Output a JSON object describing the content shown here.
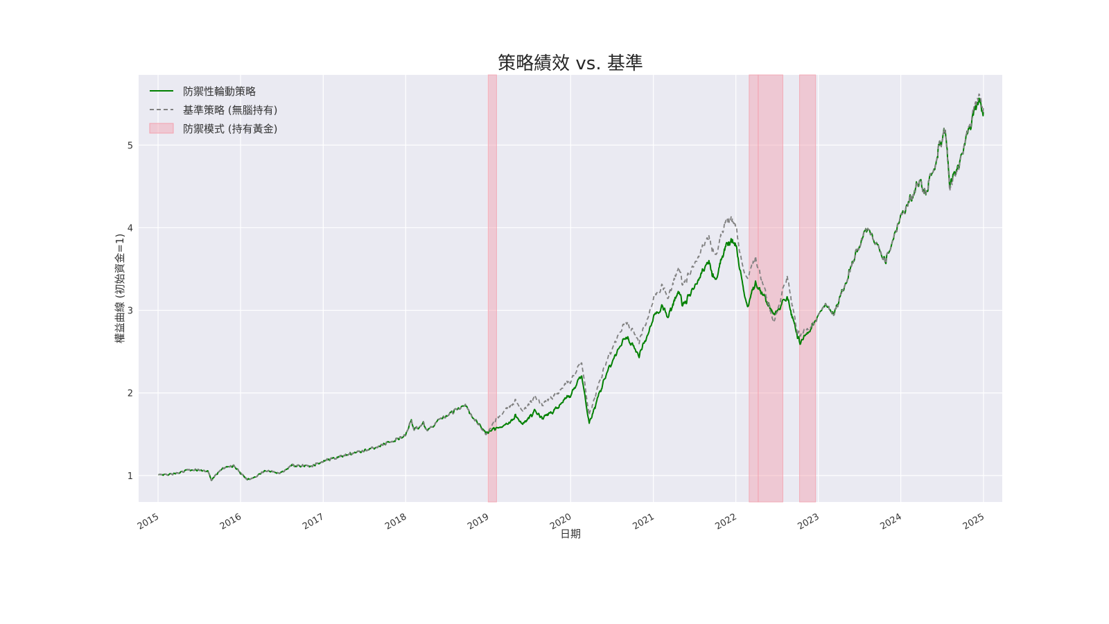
{
  "chart_data": {
    "type": "line",
    "title": "策略績效 vs. 基準",
    "xlabel": "日期",
    "ylabel": "權益曲線 (初始資金=1)",
    "xlim": [
      "2014-10-07",
      "2025-03-25"
    ],
    "ylim": [
      0.68,
      5.85
    ],
    "x_ticks": [
      "2015",
      "2016",
      "2017",
      "2018",
      "2019",
      "2020",
      "2021",
      "2022",
      "2023",
      "2024",
      "2025"
    ],
    "y_ticks": [
      1,
      2,
      3,
      4,
      5
    ],
    "grid": true,
    "legend_position": "top-left",
    "legend": [
      {
        "label": "防禦性輪動策略",
        "kind": "solid-line",
        "color": "#008000"
      },
      {
        "label": "基準策略 (無腦持有)",
        "kind": "dashed-line",
        "color": "#808080"
      },
      {
        "label": "防禦模式 (持有黃金)",
        "kind": "shaded-area",
        "color": "#f4a0ad"
      }
    ],
    "defensive_periods": [
      {
        "start": "2019-01-01",
        "end": "2019-02-07"
      },
      {
        "start": "2022-03-01",
        "end": "2022-04-10"
      },
      {
        "start": "2022-04-10",
        "end": "2022-07-28"
      },
      {
        "start": "2022-10-10",
        "end": "2022-12-20"
      }
    ],
    "series": [
      {
        "name": "防禦性輪動策略",
        "color": "#008000",
        "style": "solid",
        "points": [
          [
            "2015-01-02",
            1.0
          ],
          [
            "2015-02-15",
            1.01
          ],
          [
            "2015-05-20",
            1.07
          ],
          [
            "2015-07-15",
            1.06
          ],
          [
            "2015-08-10",
            1.06
          ],
          [
            "2015-08-25",
            0.95
          ],
          [
            "2015-10-15",
            1.09
          ],
          [
            "2015-12-01",
            1.12
          ],
          [
            "2016-01-20",
            0.97
          ],
          [
            "2016-02-12",
            0.95
          ],
          [
            "2016-04-20",
            1.06
          ],
          [
            "2016-06-27",
            1.03
          ],
          [
            "2016-08-15",
            1.12
          ],
          [
            "2016-11-04",
            1.11
          ],
          [
            "2016-12-31",
            1.17
          ],
          [
            "2017-03-01",
            1.22
          ],
          [
            "2017-06-30",
            1.3
          ],
          [
            "2017-09-30",
            1.38
          ],
          [
            "2017-12-31",
            1.48
          ],
          [
            "2018-01-26",
            1.68
          ],
          [
            "2018-02-08",
            1.55
          ],
          [
            "2018-03-20",
            1.64
          ],
          [
            "2018-04-06",
            1.55
          ],
          [
            "2018-06-15",
            1.7
          ],
          [
            "2018-09-20",
            1.86
          ],
          [
            "2018-10-25",
            1.7
          ],
          [
            "2018-12-24",
            1.52
          ],
          [
            "2019-01-15",
            1.55
          ],
          [
            "2019-03-30",
            1.62
          ],
          [
            "2019-04-30",
            1.72
          ],
          [
            "2019-06-03",
            1.62
          ],
          [
            "2019-07-26",
            1.78
          ],
          [
            "2019-08-26",
            1.7
          ],
          [
            "2019-10-01",
            1.74
          ],
          [
            "2019-12-31",
            1.98
          ],
          [
            "2020-02-19",
            2.22
          ],
          [
            "2020-03-23",
            1.62
          ],
          [
            "2020-06-08",
            2.25
          ],
          [
            "2020-09-02",
            2.7
          ],
          [
            "2020-10-30",
            2.45
          ],
          [
            "2020-12-31",
            2.9
          ],
          [
            "2021-02-12",
            3.05
          ],
          [
            "2021-03-04",
            2.92
          ],
          [
            "2021-04-26",
            3.22
          ],
          [
            "2021-05-12",
            3.05
          ],
          [
            "2021-09-02",
            3.6
          ],
          [
            "2021-10-04",
            3.35
          ],
          [
            "2021-11-19",
            3.82
          ],
          [
            "2021-12-30",
            3.82
          ],
          [
            "2022-01-27",
            3.35
          ],
          [
            "2022-02-23",
            3.05
          ],
          [
            "2022-03-29",
            3.35
          ],
          [
            "2022-06-16",
            2.95
          ],
          [
            "2022-08-16",
            3.15
          ],
          [
            "2022-10-12",
            2.6
          ],
          [
            "2022-12-15",
            2.85
          ],
          [
            "2023-02-02",
            3.1
          ],
          [
            "2023-03-10",
            2.95
          ],
          [
            "2023-05-31",
            3.55
          ],
          [
            "2023-07-31",
            4.0
          ],
          [
            "2023-10-27",
            3.6
          ],
          [
            "2023-12-29",
            4.1
          ],
          [
            "2024-03-28",
            4.6
          ],
          [
            "2024-04-19",
            4.4
          ],
          [
            "2024-07-16",
            5.2
          ],
          [
            "2024-08-05",
            4.5
          ],
          [
            "2024-09-30",
            4.9
          ],
          [
            "2024-12-06",
            5.55
          ],
          [
            "2024-12-31",
            5.4
          ]
        ]
      },
      {
        "name": "基準策略 (無腦持有)",
        "color": "#808080",
        "style": "dashed",
        "points": [
          [
            "2015-01-02",
            1.0
          ],
          [
            "2015-02-15",
            1.01
          ],
          [
            "2015-05-20",
            1.07
          ],
          [
            "2015-07-15",
            1.06
          ],
          [
            "2015-08-10",
            1.06
          ],
          [
            "2015-08-25",
            0.95
          ],
          [
            "2015-10-15",
            1.09
          ],
          [
            "2015-12-01",
            1.12
          ],
          [
            "2016-01-20",
            0.97
          ],
          [
            "2016-02-12",
            0.95
          ],
          [
            "2016-04-20",
            1.06
          ],
          [
            "2016-06-27",
            1.03
          ],
          [
            "2016-08-15",
            1.12
          ],
          [
            "2016-11-04",
            1.11
          ],
          [
            "2016-12-31",
            1.17
          ],
          [
            "2017-03-01",
            1.22
          ],
          [
            "2017-06-30",
            1.3
          ],
          [
            "2017-09-30",
            1.38
          ],
          [
            "2017-12-31",
            1.48
          ],
          [
            "2018-01-26",
            1.68
          ],
          [
            "2018-02-08",
            1.55
          ],
          [
            "2018-03-20",
            1.64
          ],
          [
            "2018-04-06",
            1.55
          ],
          [
            "2018-06-15",
            1.7
          ],
          [
            "2018-09-20",
            1.86
          ],
          [
            "2018-10-25",
            1.7
          ],
          [
            "2018-12-24",
            1.5
          ],
          [
            "2019-02-05",
            1.68
          ],
          [
            "2019-04-30",
            1.9
          ],
          [
            "2019-06-03",
            1.78
          ],
          [
            "2019-07-26",
            1.95
          ],
          [
            "2019-08-26",
            1.86
          ],
          [
            "2019-10-01",
            1.92
          ],
          [
            "2019-12-31",
            2.15
          ],
          [
            "2020-02-19",
            2.38
          ],
          [
            "2020-03-23",
            1.72
          ],
          [
            "2020-06-08",
            2.4
          ],
          [
            "2020-09-02",
            2.88
          ],
          [
            "2020-10-30",
            2.62
          ],
          [
            "2020-12-31",
            3.12
          ],
          [
            "2021-02-12",
            3.3
          ],
          [
            "2021-03-04",
            3.15
          ],
          [
            "2021-04-26",
            3.5
          ],
          [
            "2021-05-12",
            3.3
          ],
          [
            "2021-09-02",
            3.9
          ],
          [
            "2021-10-04",
            3.65
          ],
          [
            "2021-11-19",
            4.12
          ],
          [
            "2021-12-30",
            4.05
          ],
          [
            "2022-01-27",
            3.55
          ],
          [
            "2022-02-23",
            3.4
          ],
          [
            "2022-03-29",
            3.65
          ],
          [
            "2022-06-16",
            2.85
          ],
          [
            "2022-08-16",
            3.4
          ],
          [
            "2022-09-30",
            2.75
          ],
          [
            "2022-10-12",
            2.7
          ],
          [
            "2022-12-15",
            2.85
          ],
          [
            "2023-02-02",
            3.1
          ],
          [
            "2023-03-10",
            2.95
          ],
          [
            "2023-05-31",
            3.55
          ],
          [
            "2023-07-31",
            4.0
          ],
          [
            "2023-10-27",
            3.6
          ],
          [
            "2023-12-29",
            4.1
          ],
          [
            "2024-03-28",
            4.6
          ],
          [
            "2024-04-19",
            4.4
          ],
          [
            "2024-07-16",
            5.2
          ],
          [
            "2024-08-05",
            4.45
          ],
          [
            "2024-09-30",
            4.9
          ],
          [
            "2024-12-06",
            5.6
          ],
          [
            "2024-12-31",
            5.45
          ]
        ]
      }
    ]
  }
}
